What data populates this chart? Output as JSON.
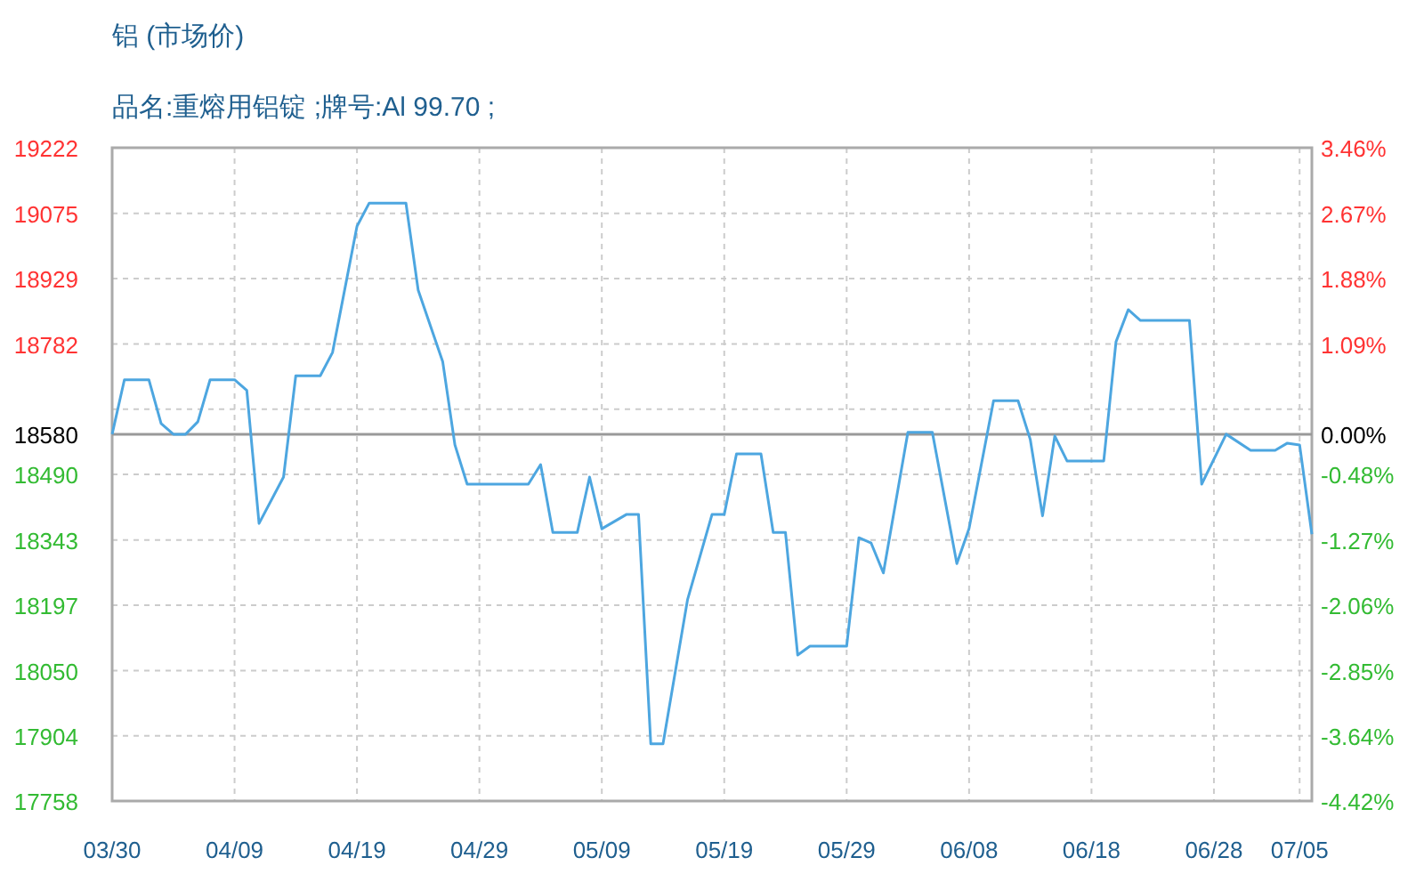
{
  "chart_data": {
    "type": "line",
    "title": "铝 (市场价)",
    "subtitle": "品名:重熔用铝锭 ;牌号:Al 99.70 ;",
    "x": [
      "--03-30",
      "--03-31",
      "--04-02",
      "--04-03",
      "--04-04",
      "--04-05",
      "--04-06",
      "--04-07",
      "--04-09",
      "--04-10",
      "--04-11",
      "--04-13",
      "--04-14",
      "--04-16",
      "--04-17",
      "--04-19",
      "--04-20",
      "--04-23",
      "--04-24",
      "--04-26",
      "--04-27",
      "--04-28",
      "--05-03",
      "--05-04",
      "--05-05",
      "--05-07",
      "--05-08",
      "--05-09",
      "--05-11",
      "--05-12",
      "--05-13",
      "--05-14",
      "--05-16",
      "--05-18",
      "--05-19",
      "--05-20",
      "--05-22",
      "--05-23",
      "--05-24",
      "--05-25",
      "--05-26",
      "--05-29",
      "--05-30",
      "--05-31",
      "--06-01",
      "--06-03",
      "--06-05",
      "--06-07",
      "--06-08",
      "--06-10",
      "--06-12",
      "--06-13",
      "--06-14",
      "--06-15",
      "--06-16",
      "--06-19",
      "--06-20",
      "--06-21",
      "--06-22",
      "--06-26",
      "--06-27",
      "--06-29",
      "--07-01",
      "--07-03",
      "--07-04",
      "--07-05",
      "--07-06"
    ],
    "series": [
      {
        "color": "#4da6e0",
        "values": [
          18580,
          18702,
          18702,
          18604,
          18580,
          18580,
          18608,
          18702,
          18702,
          18678,
          18380,
          18484,
          18711,
          18711,
          18763,
          19046,
          19098,
          19098,
          18903,
          18743,
          18556,
          18468,
          18468,
          18512,
          18360,
          18360,
          18484,
          18368,
          18400,
          18400,
          17886,
          17886,
          18209,
          18400,
          18400,
          18536,
          18536,
          18360,
          18360,
          18085,
          18105,
          18105,
          18348,
          18336,
          18269,
          18584,
          18584,
          18290,
          18369,
          18655,
          18655,
          18568,
          18397,
          18576,
          18520,
          18520,
          18787,
          18859,
          18835,
          18835,
          18468,
          18580,
          18544,
          18544,
          18560,
          18556,
          18356
        ]
      }
    ],
    "xlim": [
      "--03-30",
      "--07-06"
    ],
    "xticks": [
      {
        "value": "--03-30",
        "label": "03/30"
      },
      {
        "value": "--04-09",
        "label": "04/09"
      },
      {
        "value": "--04-19",
        "label": "04/19"
      },
      {
        "value": "--04-29",
        "label": "04/29"
      },
      {
        "value": "--05-09",
        "label": "05/09"
      },
      {
        "value": "--05-19",
        "label": "05/19"
      },
      {
        "value": "--05-29",
        "label": "05/29"
      },
      {
        "value": "--06-08",
        "label": "06/08"
      },
      {
        "value": "--06-18",
        "label": "06/18"
      },
      {
        "value": "--06-28",
        "label": "06/28"
      },
      {
        "value": "--07-05",
        "label": "07/05"
      }
    ],
    "ylim": [
      17758,
      19222
    ],
    "yticks": [
      19222,
      19075,
      18929,
      18782,
      {
        "value": 18636,
        "label": null
      },
      18580,
      18490,
      18343,
      18197,
      18050,
      17904,
      17758
    ],
    "y2lim": [
      -4.42,
      3.46
    ],
    "y2ticks": [
      {
        "value": 3.46,
        "label": "3.46%"
      },
      {
        "value": 2.67,
        "label": "2.67%"
      },
      {
        "value": 1.88,
        "label": "1.88%"
      },
      {
        "value": 1.09,
        "label": "1.09%"
      },
      {
        "value": 0,
        "label": "0.00%"
      },
      {
        "value": -0.48,
        "label": "-0.48%"
      },
      {
        "value": -1.27,
        "label": "-1.27%"
      },
      {
        "value": -2.06,
        "label": "-2.06%"
      },
      {
        "value": -2.85,
        "label": "-2.85%"
      },
      {
        "value": -3.64,
        "label": "-3.64%"
      },
      {
        "value": -4.42,
        "label": "-4.42%"
      }
    ],
    "ref_lines": [
      {
        "axis": "y",
        "value": 18580,
        "color": "#999999"
      }
    ],
    "grid": true
  }
}
